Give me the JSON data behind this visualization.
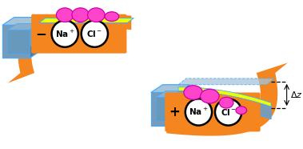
{
  "bg_color": "#ffffff",
  "orange": "#F5851F",
  "gray": "#7A9BB5",
  "gray_dark": "#5A7A95",
  "gray_light": "#A8C4D8",
  "yellow": "#EEFF00",
  "blue_outline": "#44AAFF",
  "protein_fill": "#FF44CC",
  "protein_edge": "#CC00AA",
  "white": "#FFFFFF",
  "black": "#000000"
}
